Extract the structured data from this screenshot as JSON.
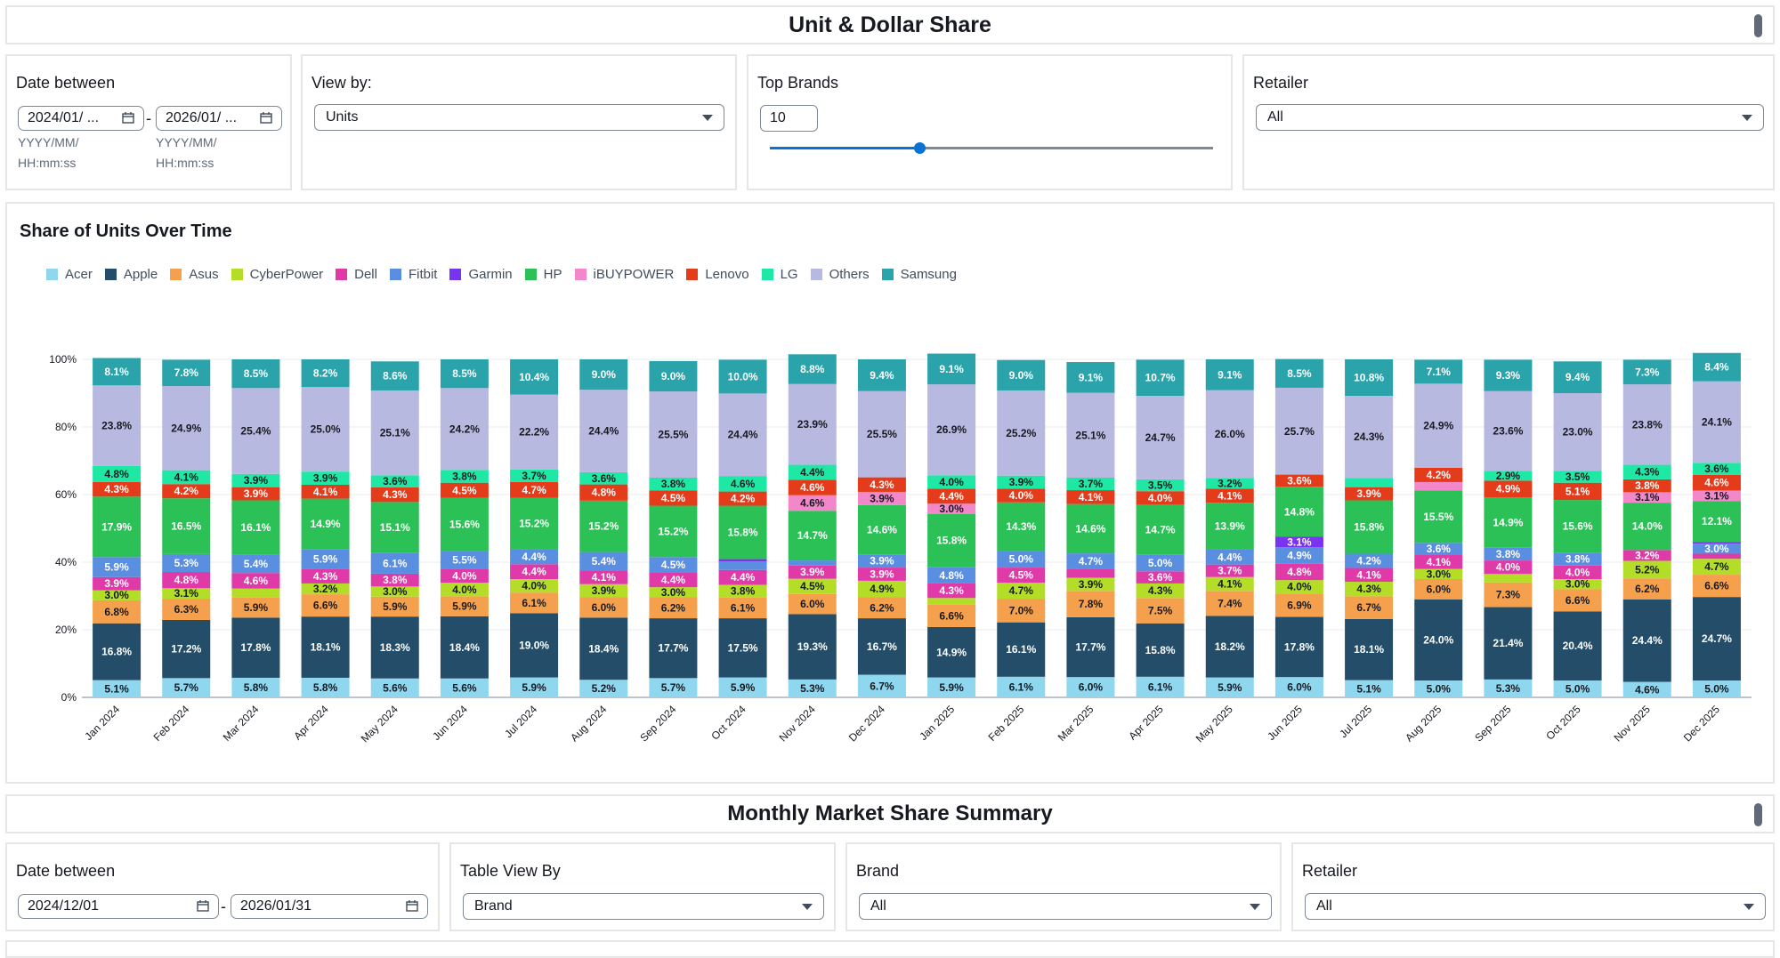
{
  "header": {
    "title": "Unit & Dollar Share"
  },
  "filters": {
    "date": {
      "label": "Date between",
      "start": "2024/01/ ...",
      "end": "2026/01/ ...",
      "hint_line1": "YYYY/MM/",
      "hint_line2": "HH:mm:ss",
      "separator": "-"
    },
    "view_by": {
      "label": "View by:",
      "value": "Units"
    },
    "top_brands": {
      "label": "Top Brands",
      "value": "10",
      "slider_fraction": 0.34
    },
    "retailer": {
      "label": "Retailer",
      "value": "All"
    }
  },
  "chart_title": "Share of Units Over Time",
  "legend": [
    {
      "name": "Acer",
      "color": "#8fd6ef"
    },
    {
      "name": "Apple",
      "color": "#234d68"
    },
    {
      "name": "Asus",
      "color": "#f5a04d"
    },
    {
      "name": "CyberPower",
      "color": "#b4dd27"
    },
    {
      "name": "Dell",
      "color": "#e03aa8"
    },
    {
      "name": "Fitbit",
      "color": "#5a8ee0"
    },
    {
      "name": "Garmin",
      "color": "#7a34f1"
    },
    {
      "name": "HP",
      "color": "#2cc157"
    },
    {
      "name": "iBUYPOWER",
      "color": "#f287c9"
    },
    {
      "name": "Lenovo",
      "color": "#e43b1b"
    },
    {
      "name": "LG",
      "color": "#1fe8a5"
    },
    {
      "name": "Others",
      "color": "#b8b9e1"
    },
    {
      "name": "Samsung",
      "color": "#2aa3ab"
    }
  ],
  "chart_data": {
    "type": "bar",
    "stacked": true,
    "ylim": [
      0,
      100
    ],
    "yticks": [
      "0%",
      "20%",
      "40%",
      "60%",
      "80%",
      "100%"
    ],
    "categories": [
      "Jan 2024",
      "Feb 2024",
      "Mar 2024",
      "Apr 2024",
      "May 2024",
      "Jun 2024",
      "Jul 2024",
      "Aug 2024",
      "Sep 2024",
      "Oct 2024",
      "Nov 2024",
      "Dec 2024",
      "Jan 2025",
      "Feb 2025",
      "Mar 2025",
      "Apr 2025",
      "May 2025",
      "Jun 2025",
      "Jul 2025",
      "Aug 2025",
      "Sep 2025",
      "Oct 2025",
      "Nov 2025",
      "Dec 2025"
    ],
    "series": [
      {
        "name": "Acer",
        "values": [
          5.1,
          5.7,
          5.8,
          5.8,
          5.6,
          5.6,
          5.9,
          5.2,
          5.7,
          5.9,
          5.3,
          6.7,
          5.9,
          6.1,
          6.0,
          6.1,
          5.9,
          6.0,
          5.1,
          5.0,
          5.3,
          5.0,
          4.6,
          5.0
        ]
      },
      {
        "name": "Apple",
        "values": [
          16.8,
          17.2,
          17.8,
          18.1,
          18.3,
          18.4,
          19.0,
          18.4,
          17.7,
          17.5,
          19.3,
          16.7,
          14.9,
          16.1,
          17.7,
          15.8,
          18.2,
          17.8,
          18.1,
          24.0,
          21.4,
          20.4,
          24.4,
          24.7
        ]
      },
      {
        "name": "Asus",
        "values": [
          6.8,
          6.3,
          5.9,
          6.6,
          5.9,
          5.9,
          6.1,
          6.0,
          6.2,
          6.1,
          6.0,
          6.2,
          6.6,
          7.0,
          7.8,
          7.5,
          7.4,
          6.9,
          6.7,
          6.0,
          7.3,
          6.6,
          6.2,
          6.6
        ]
      },
      {
        "name": "CyberPower",
        "values": [
          3.0,
          3.1,
          2.7,
          3.2,
          3.0,
          4.0,
          4.0,
          3.9,
          3.0,
          3.8,
          4.5,
          4.9,
          2.0,
          4.7,
          3.9,
          4.3,
          4.1,
          4.0,
          4.3,
          3.0,
          2.5,
          3.0,
          5.2,
          4.7
        ]
      },
      {
        "name": "Dell",
        "values": [
          3.9,
          4.8,
          4.6,
          4.3,
          3.8,
          4.0,
          4.4,
          4.1,
          4.4,
          4.4,
          3.9,
          3.9,
          4.3,
          4.5,
          2.5,
          3.6,
          3.7,
          4.8,
          4.1,
          4.1,
          4.0,
          4.0,
          3.2,
          1.5
        ]
      },
      {
        "name": "Fitbit",
        "values": [
          5.9,
          5.3,
          5.4,
          5.9,
          6.1,
          5.5,
          4.4,
          5.4,
          4.5,
          2.5,
          1.5,
          3.9,
          4.8,
          5.0,
          4.7,
          5.0,
          4.4,
          4.9,
          4.2,
          3.6,
          3.8,
          3.8,
          0,
          3.0
        ]
      },
      {
        "name": "Garmin",
        "values": [
          0,
          0,
          0,
          0,
          0,
          0,
          0,
          0,
          0,
          0.7,
          0,
          0,
          0,
          0,
          0,
          0,
          0,
          3.1,
          0,
          0,
          0,
          0,
          0,
          0.5
        ]
      },
      {
        "name": "HP",
        "values": [
          17.9,
          16.5,
          16.1,
          14.9,
          15.1,
          15.6,
          15.2,
          15.2,
          15.2,
          15.8,
          14.7,
          14.6,
          15.8,
          14.3,
          14.6,
          14.7,
          13.9,
          14.8,
          15.8,
          15.5,
          14.9,
          15.6,
          14.0,
          12.1
        ]
      },
      {
        "name": "iBUYPOWER",
        "values": [
          0,
          0,
          0,
          0,
          0,
          0,
          0,
          0,
          0,
          0,
          4.6,
          3.9,
          3.0,
          0,
          0,
          0,
          0,
          0,
          0,
          2.5,
          0,
          0,
          3.1,
          3.1
        ]
      },
      {
        "name": "Lenovo",
        "values": [
          4.3,
          4.2,
          3.9,
          4.1,
          4.3,
          4.5,
          4.7,
          4.8,
          4.5,
          4.2,
          4.6,
          4.3,
          4.4,
          4.0,
          4.1,
          4.0,
          4.1,
          3.6,
          3.9,
          4.2,
          4.9,
          5.1,
          3.8,
          4.6
        ]
      },
      {
        "name": "LG",
        "values": [
          4.8,
          4.1,
          3.9,
          3.9,
          3.6,
          3.8,
          3.7,
          3.6,
          3.8,
          4.6,
          4.4,
          0,
          4.0,
          3.9,
          3.7,
          3.5,
          3.2,
          0,
          2.7,
          0,
          2.9,
          3.5,
          4.3,
          3.6
        ]
      },
      {
        "name": "Others",
        "values": [
          23.8,
          24.9,
          25.4,
          25.0,
          25.1,
          24.2,
          22.2,
          24.4,
          25.5,
          24.4,
          23.9,
          25.5,
          26.9,
          25.2,
          25.1,
          24.7,
          26.0,
          25.7,
          24.3,
          24.9,
          23.6,
          23.0,
          23.8,
          24.1
        ]
      },
      {
        "name": "Samsung",
        "values": [
          8.1,
          7.8,
          8.5,
          8.2,
          8.6,
          8.5,
          10.4,
          9.0,
          9.0,
          10.0,
          8.8,
          9.4,
          9.1,
          9.0,
          9.1,
          10.7,
          9.1,
          8.5,
          10.8,
          7.1,
          9.3,
          9.4,
          7.3,
          8.4
        ]
      }
    ]
  },
  "summary": {
    "title": "Monthly Market Share Summary",
    "date": {
      "label": "Date between",
      "start": "2024/12/01",
      "end": "2026/01/31",
      "separator": "-"
    },
    "table_view_by": {
      "label": "Table View By",
      "value": "Brand"
    },
    "brand": {
      "label": "Brand",
      "value": "All"
    },
    "retailer": {
      "label": "Retailer",
      "value": "All"
    }
  }
}
